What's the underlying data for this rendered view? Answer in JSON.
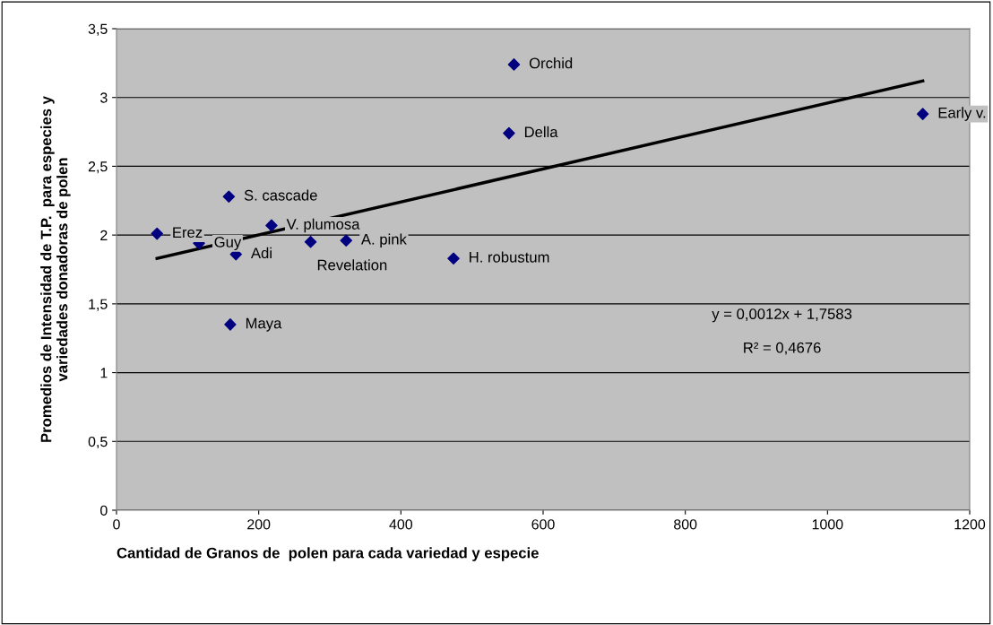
{
  "chart_data": {
    "type": "scatter",
    "xlabel": "Cantidad de Granos de  polen para cada variedad y especie",
    "ylabel": "Promedios de Intensidad de T.P.  para especies y\nvariedades donadoras de polen",
    "xlim": [
      0,
      1200
    ],
    "xticks": [
      0,
      200,
      400,
      600,
      800,
      1000,
      1200
    ],
    "ylim": [
      0,
      3.5
    ],
    "yticks": [
      0,
      {
        "value": 0.5,
        "label": "0,5"
      },
      1,
      {
        "value": 1.5,
        "label": "1,5"
      },
      2,
      {
        "value": 2.5,
        "label": "2,5"
      },
      3,
      {
        "value": 3.5,
        "label": "3,5"
      }
    ],
    "grid": "y",
    "series": [
      {
        "marker": "diamond",
        "color": "#000080",
        "x": [
          57,
          116,
          158,
          168,
          160,
          218,
          273,
          323,
          474,
          552,
          559,
          1134
        ],
        "values": [
          2.01,
          1.94,
          2.28,
          1.86,
          1.35,
          2.07,
          1.95,
          1.96,
          1.83,
          2.74,
          3.24,
          2.88
        ]
      },
      {
        "type": "line",
        "color": "#000000",
        "x": [
          57,
          1134
        ],
        "values": [
          1.83,
          3.12
        ]
      }
    ],
    "annotations": [
      {
        "text": "Erez",
        "x": 57,
        "y": 2.01
      },
      {
        "text": "Guy",
        "x": 116,
        "y": 1.94
      },
      {
        "text": "S. cascade",
        "x": 158,
        "y": 2.28
      },
      {
        "text": "Adi",
        "x": 168,
        "y": 1.86
      },
      {
        "text": "Maya",
        "x": 160,
        "y": 1.35
      },
      {
        "text": "V. plumosa",
        "x": 218,
        "y": 2.07
      },
      {
        "text": "Revelation",
        "x": 273,
        "y": 1.95
      },
      {
        "text": "A. pink",
        "x": 323,
        "y": 1.96
      },
      {
        "text": "H. robustum",
        "x": 474,
        "y": 1.83
      },
      {
        "text": "Della",
        "x": 552,
        "y": 2.74
      },
      {
        "text": "Orchid",
        "x": 559,
        "y": 3.24
      },
      {
        "text": "Early v.",
        "x": 1134,
        "y": 2.88
      },
      "y = 0,0012x + 1,7583",
      "R² = 0,4676"
    ]
  }
}
